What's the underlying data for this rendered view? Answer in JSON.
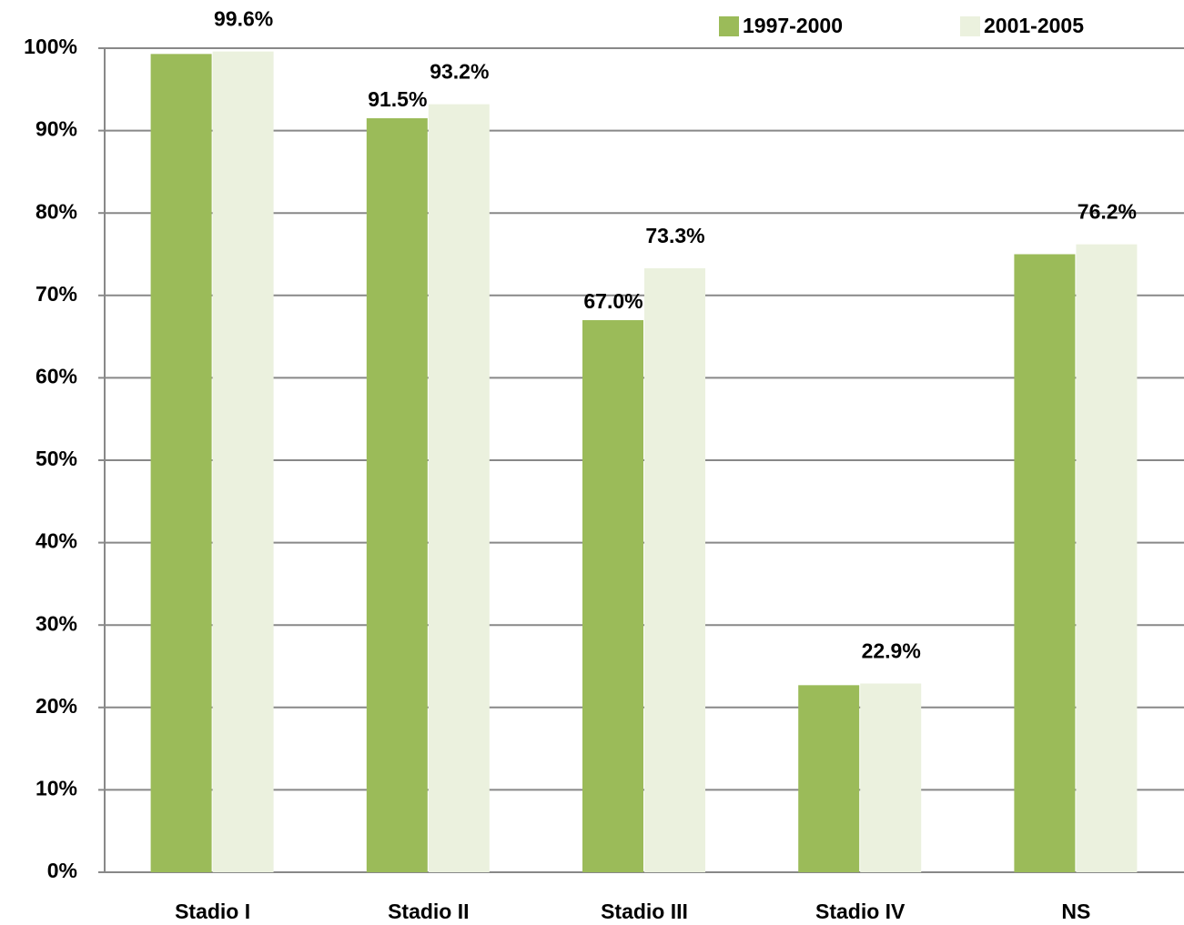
{
  "chart_data": {
    "type": "bar",
    "categories": [
      "Stadio I",
      "Stadio II",
      "Stadio III",
      "Stadio IV",
      "NS"
    ],
    "series": [
      {
        "name": "1997-2000",
        "color": "#9bbb59",
        "values": [
          99.3,
          91.5,
          67.0,
          22.7,
          75.0
        ],
        "value_labels": [
          null,
          "91.5%",
          "67.0%",
          null,
          null
        ]
      },
      {
        "name": "2001-2005",
        "color": "#ebf1de",
        "values": [
          99.6,
          93.2,
          73.3,
          22.9,
          76.2
        ],
        "value_labels": [
          "99.6%",
          "93.2%",
          "73.3%",
          "22.9%",
          "76.2%"
        ]
      }
    ],
    "ylim": [
      0,
      100
    ],
    "yticks": [
      {
        "value": 0,
        "label": "0%"
      },
      {
        "value": 10,
        "label": "10%"
      },
      {
        "value": 20,
        "label": "20%"
      },
      {
        "value": 30,
        "label": "30%"
      },
      {
        "value": 40,
        "label": "40%"
      },
      {
        "value": 50,
        "label": "50%"
      },
      {
        "value": 60,
        "label": "60%"
      },
      {
        "value": 70,
        "label": "70%"
      },
      {
        "value": 80,
        "label": "80%"
      },
      {
        "value": 90,
        "label": "90%"
      },
      {
        "value": 100,
        "label": "100%"
      }
    ],
    "grid": true,
    "legend": "top-right"
  }
}
